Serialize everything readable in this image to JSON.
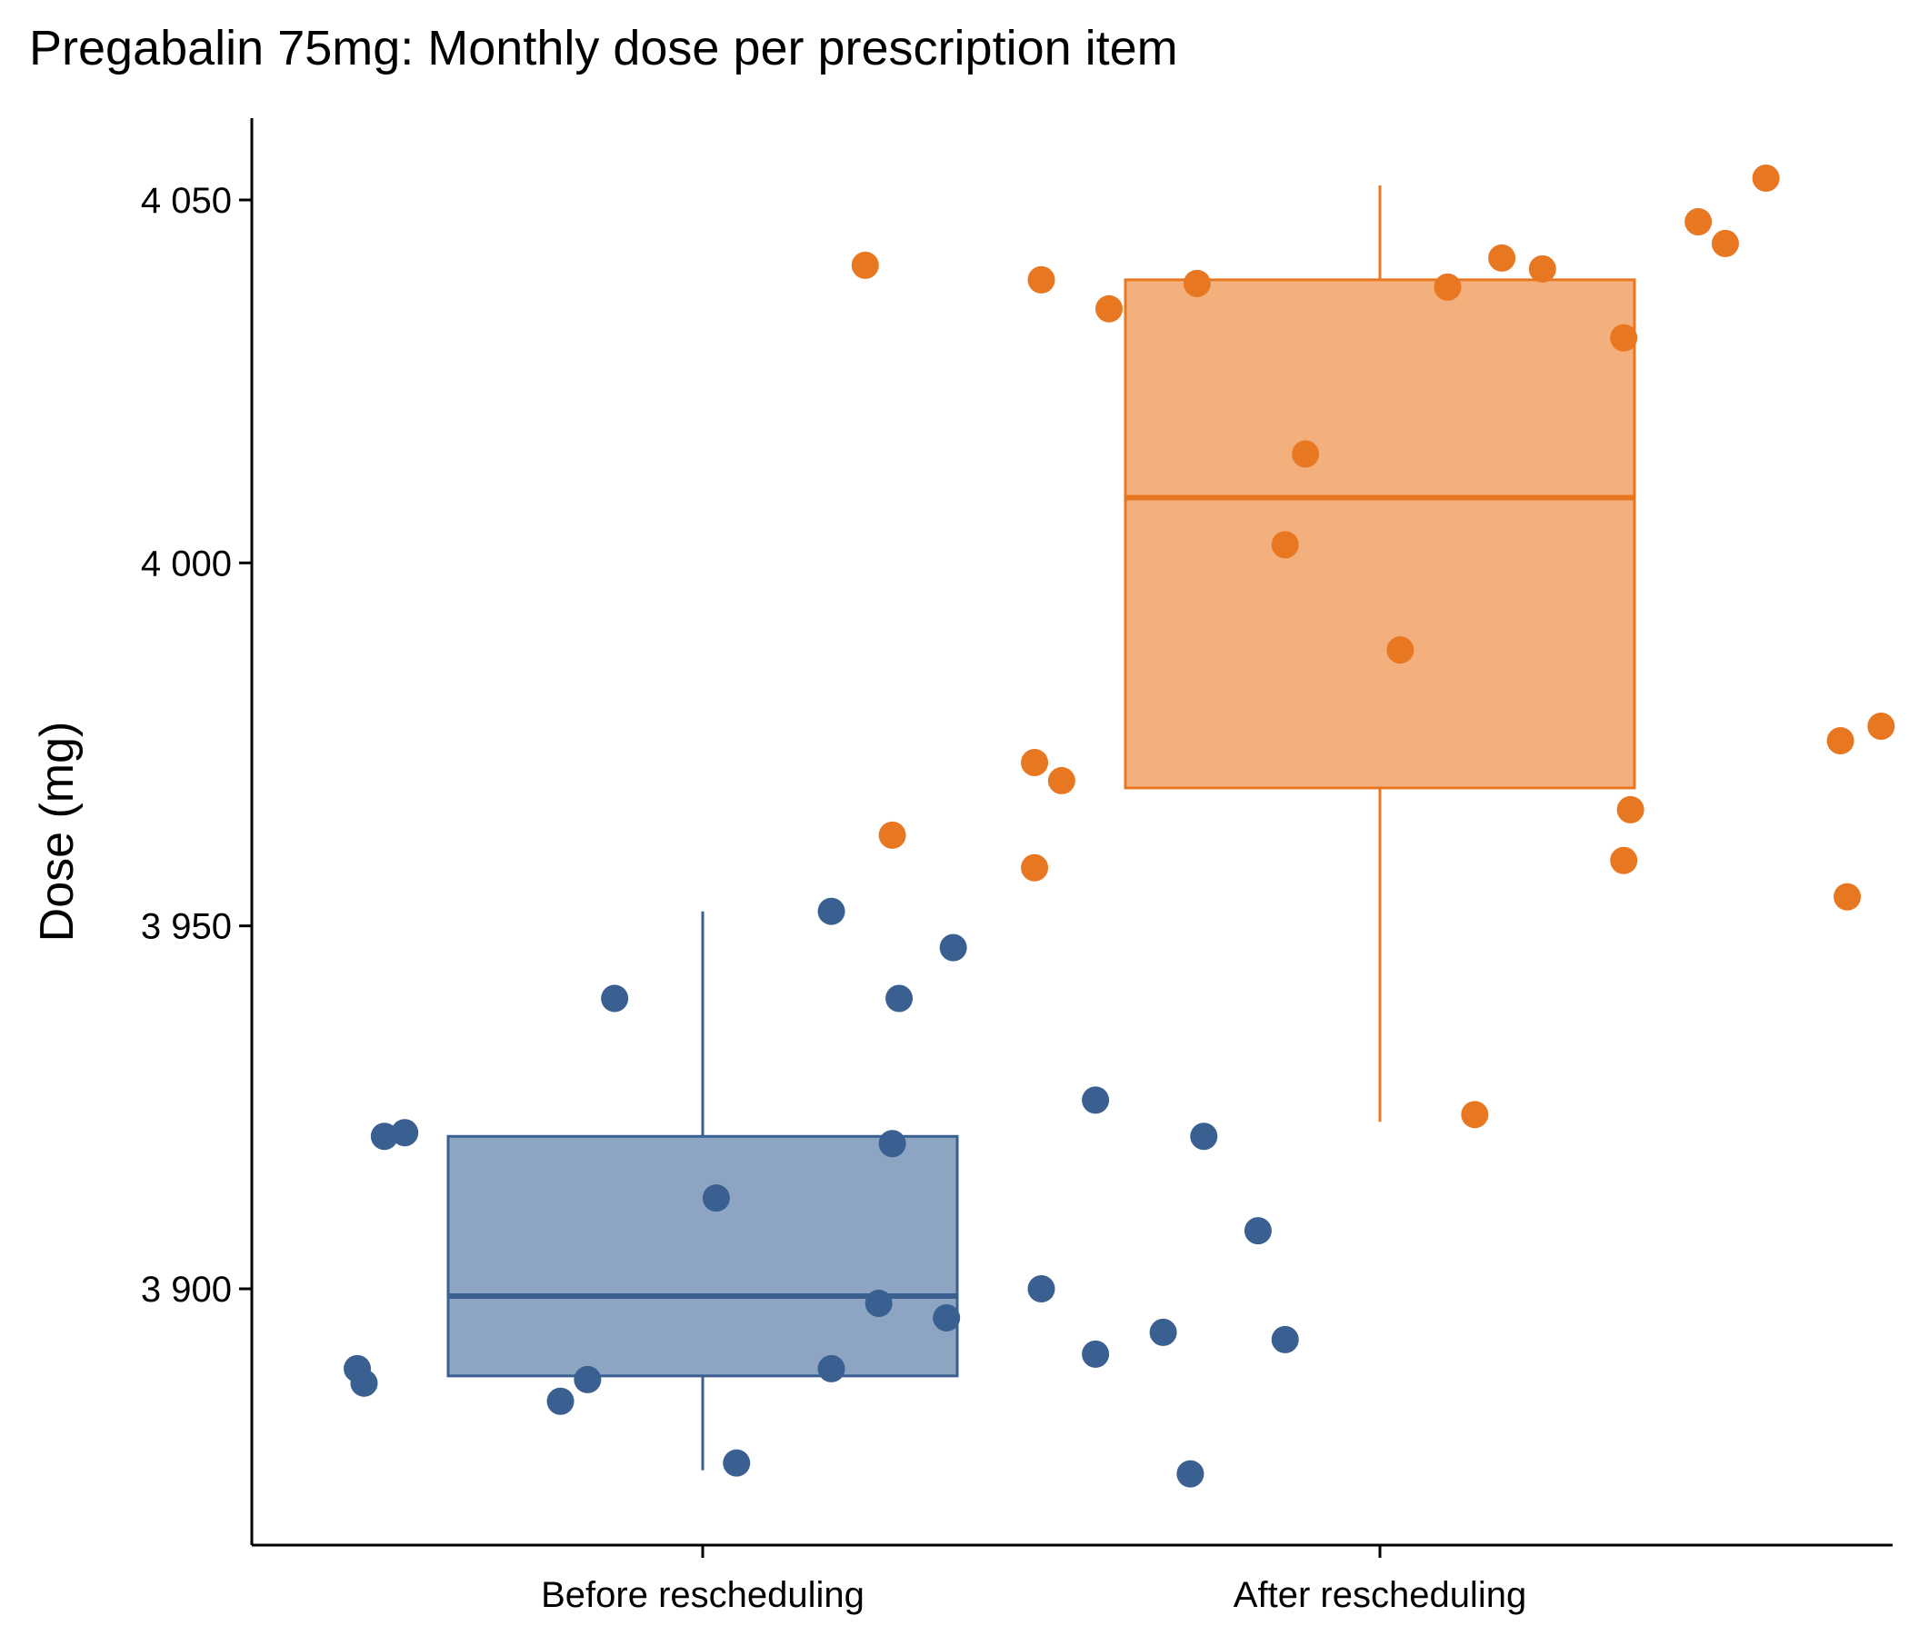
{
  "chart_data": {
    "type": "boxplot",
    "title": "Pregabalin 75mg: Monthly dose per prescription item",
    "xlabel": "",
    "ylabel": "Dose (mg)",
    "ylim": [
      3865,
      4062
    ],
    "yticks": [
      3900,
      3950,
      4000,
      4050
    ],
    "ytick_labels": [
      "3 900",
      "3 950",
      "4 000",
      "4 050"
    ],
    "grid": false,
    "legend": "none",
    "categories": [
      "Before rescheduling",
      "After rescheduling"
    ],
    "series": [
      {
        "category": "Before rescheduling",
        "color": "#3a5f91",
        "fill": "#8da4c2",
        "box": {
          "min": 3875,
          "q1": 3888,
          "median": 3899,
          "q3": 3921,
          "max": 3952
        },
        "points": [
          [
            0.49,
            3889
          ],
          [
            0.5,
            3887
          ],
          [
            0.53,
            3921
          ],
          [
            0.56,
            3921.5
          ],
          [
            0.79,
            3884.5
          ],
          [
            0.83,
            3887.5
          ],
          [
            0.87,
            3940
          ],
          [
            1.02,
            3912.5
          ],
          [
            1.05,
            3876
          ],
          [
            1.19,
            3889
          ],
          [
            1.19,
            3952
          ],
          [
            1.26,
            3898
          ],
          [
            1.28,
            3920
          ],
          [
            1.29,
            3940
          ],
          [
            1.36,
            3896
          ],
          [
            1.37,
            3947
          ],
          [
            1.5,
            3900
          ],
          [
            1.58,
            3891
          ],
          [
            1.58,
            3926
          ],
          [
            1.68,
            3894
          ],
          [
            1.72,
            3874.5
          ],
          [
            1.74,
            3921
          ],
          [
            1.82,
            3908
          ],
          [
            1.86,
            3893
          ]
        ]
      },
      {
        "category": "After rescheduling",
        "color": "#e87722",
        "fill": "#f4b07c",
        "box": {
          "min": 3923,
          "q1": 3969,
          "median": 4009,
          "q3": 4039,
          "max": 4052
        },
        "points": [
          [
            1.24,
            4041
          ],
          [
            1.28,
            3962.5
          ],
          [
            1.5,
            4039
          ],
          [
            1.49,
            3972.5
          ],
          [
            1.49,
            3958
          ],
          [
            1.53,
            3970
          ],
          [
            1.6,
            4035
          ],
          [
            1.73,
            4038.5
          ],
          [
            1.86,
            4002.5
          ],
          [
            1.89,
            4015
          ],
          [
            2.03,
            3988
          ],
          [
            2.1,
            4038
          ],
          [
            2.14,
            3924
          ],
          [
            2.18,
            4042
          ],
          [
            2.24,
            4040.5
          ],
          [
            2.36,
            4031
          ],
          [
            2.37,
            3966
          ],
          [
            2.36,
            3959
          ],
          [
            2.47,
            4047
          ],
          [
            2.51,
            4044
          ],
          [
            2.57,
            4053
          ],
          [
            2.68,
            3975.5
          ],
          [
            2.69,
            3954
          ],
          [
            2.74,
            3977.5
          ]
        ]
      }
    ]
  }
}
